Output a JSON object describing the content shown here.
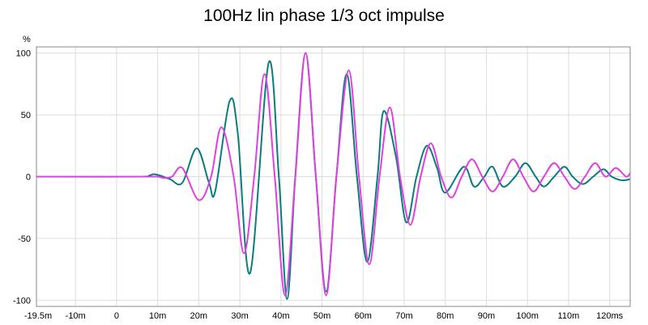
{
  "chart_data": {
    "type": "line",
    "title": "100Hz lin phase 1/3 oct impulse",
    "ylabel": "%",
    "xlabel": "",
    "xlim": [
      -19.5,
      125
    ],
    "ylim": [
      -105,
      105
    ],
    "grid": true,
    "x_ticks": [
      {
        "value": -19.5,
        "label": "-19.5m"
      },
      {
        "value": -10,
        "label": "-10m"
      },
      {
        "value": 0,
        "label": "0"
      },
      {
        "value": 10,
        "label": "10m"
      },
      {
        "value": 20,
        "label": "20m"
      },
      {
        "value": 30,
        "label": "30m"
      },
      {
        "value": 40,
        "label": "40m"
      },
      {
        "value": 50,
        "label": "50m"
      },
      {
        "value": 60,
        "label": "60m"
      },
      {
        "value": 70,
        "label": "70m"
      },
      {
        "value": 80,
        "label": "80m"
      },
      {
        "value": 90,
        "label": "90m"
      },
      {
        "value": 100,
        "label": "100m"
      },
      {
        "value": 110,
        "label": "110m"
      },
      {
        "value": 120,
        "label": "120ms"
      }
    ],
    "y_ticks": [
      {
        "value": 100,
        "label": "100"
      },
      {
        "value": 50,
        "label": "50"
      },
      {
        "value": 0,
        "label": "0"
      },
      {
        "value": -50,
        "label": "-50"
      },
      {
        "value": -100,
        "label": "-100"
      }
    ],
    "series": [
      {
        "color": "#0b7c7c",
        "x": [
          -19.5,
          5,
          8,
          9,
          10.5,
          13,
          16,
          19.5,
          22.5,
          24,
          27.5,
          29.5,
          32.5,
          37,
          39.5,
          41.5,
          43.5,
          46,
          48.5,
          51,
          53.5,
          56,
          58.5,
          61,
          63.5,
          65,
          68,
          70.5,
          73,
          75.5,
          78,
          80,
          84.5,
          87,
          89.5,
          91.5,
          94,
          97,
          99.5,
          102,
          104,
          106.5,
          109,
          111,
          113.5,
          116,
          118.5,
          120.5,
          123,
          125
        ],
        "y": [
          0,
          0,
          1,
          2,
          1,
          -2,
          -5,
          23,
          -5,
          -12,
          61,
          35,
          -78,
          92,
          0,
          -99,
          0,
          100,
          0,
          -93,
          0,
          83,
          0,
          -69,
          0,
          53,
          16,
          -37,
          0,
          25,
          7,
          -13,
          8,
          -8,
          0,
          8,
          -8,
          0,
          11,
          0,
          -8,
          0,
          8,
          0,
          -6,
          0,
          6,
          0,
          -3,
          -2
        ]
      },
      {
        "color": "#e040e0",
        "x": [
          -19.5,
          7,
          10,
          11.5,
          13.5,
          16,
          20,
          23,
          25.5,
          28.5,
          31,
          33.5,
          36,
          38.5,
          41,
          43.5,
          46,
          48.5,
          51,
          53.5,
          56.5,
          59,
          61.5,
          64,
          66.5,
          69,
          71.5,
          74,
          76.5,
          79,
          81.5,
          84,
          86.5,
          89,
          91.5,
          94,
          96.5,
          99,
          101.5,
          104,
          106.5,
          109,
          111.5,
          114,
          116.5,
          119,
          121.5,
          124,
          125
        ],
        "y": [
          0,
          0,
          0,
          -1,
          0,
          7,
          -19,
          0,
          40,
          0,
          -62,
          0,
          83,
          0,
          -96,
          0,
          100,
          0,
          -96,
          0,
          86,
          0,
          -71,
          0,
          56,
          0,
          -39,
          0,
          27,
          0,
          -17,
          0,
          14,
          0,
          -12,
          0,
          14,
          0,
          -12,
          0,
          11,
          0,
          -10,
          0,
          11,
          0,
          7,
          0,
          3
        ]
      }
    ]
  }
}
